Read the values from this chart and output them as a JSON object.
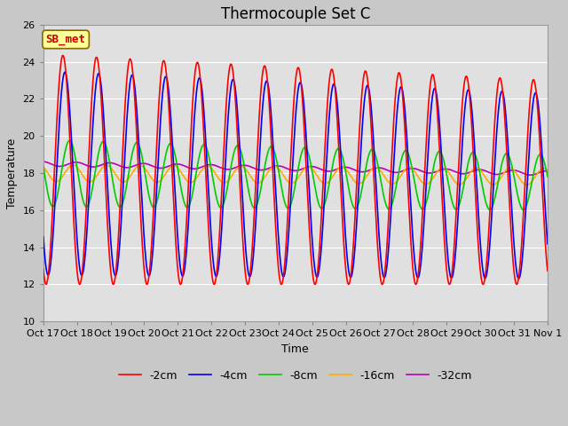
{
  "title": "Thermocouple Set C",
  "xlabel": "Time",
  "ylabel": "Temperature",
  "xlim_labels": [
    "Oct 17",
    "Oct 18",
    "Oct 19",
    "Oct 20",
    "Oct 21",
    "Oct 22",
    "Oct 23",
    "Oct 24",
    "Oct 25",
    "Oct 26",
    "Oct 27",
    "Oct 28",
    "Oct 29",
    "Oct 30",
    "Oct 31",
    "Nov 1"
  ],
  "ylim": [
    10,
    26
  ],
  "yticks": [
    10,
    12,
    14,
    16,
    18,
    20,
    22,
    24,
    26
  ],
  "legend_labels": [
    "-2cm",
    "-4cm",
    "-8cm",
    "-16cm",
    "-32cm"
  ],
  "legend_colors": [
    "#ff0000",
    "#0000ff",
    "#00cc00",
    "#ffaa00",
    "#bb00bb"
  ],
  "annotation_text": "SB_met",
  "annotation_bg": "#ffff99",
  "annotation_border": "#886600",
  "bg_color": "#e0e0e0",
  "fig_bg": "#c8c8c8",
  "grid_color": "#ffffff",
  "title_fontsize": 12,
  "axis_fontsize": 9,
  "tick_fontsize": 8,
  "legend_fontsize": 9,
  "num_days": 15,
  "points_per_day": 240
}
